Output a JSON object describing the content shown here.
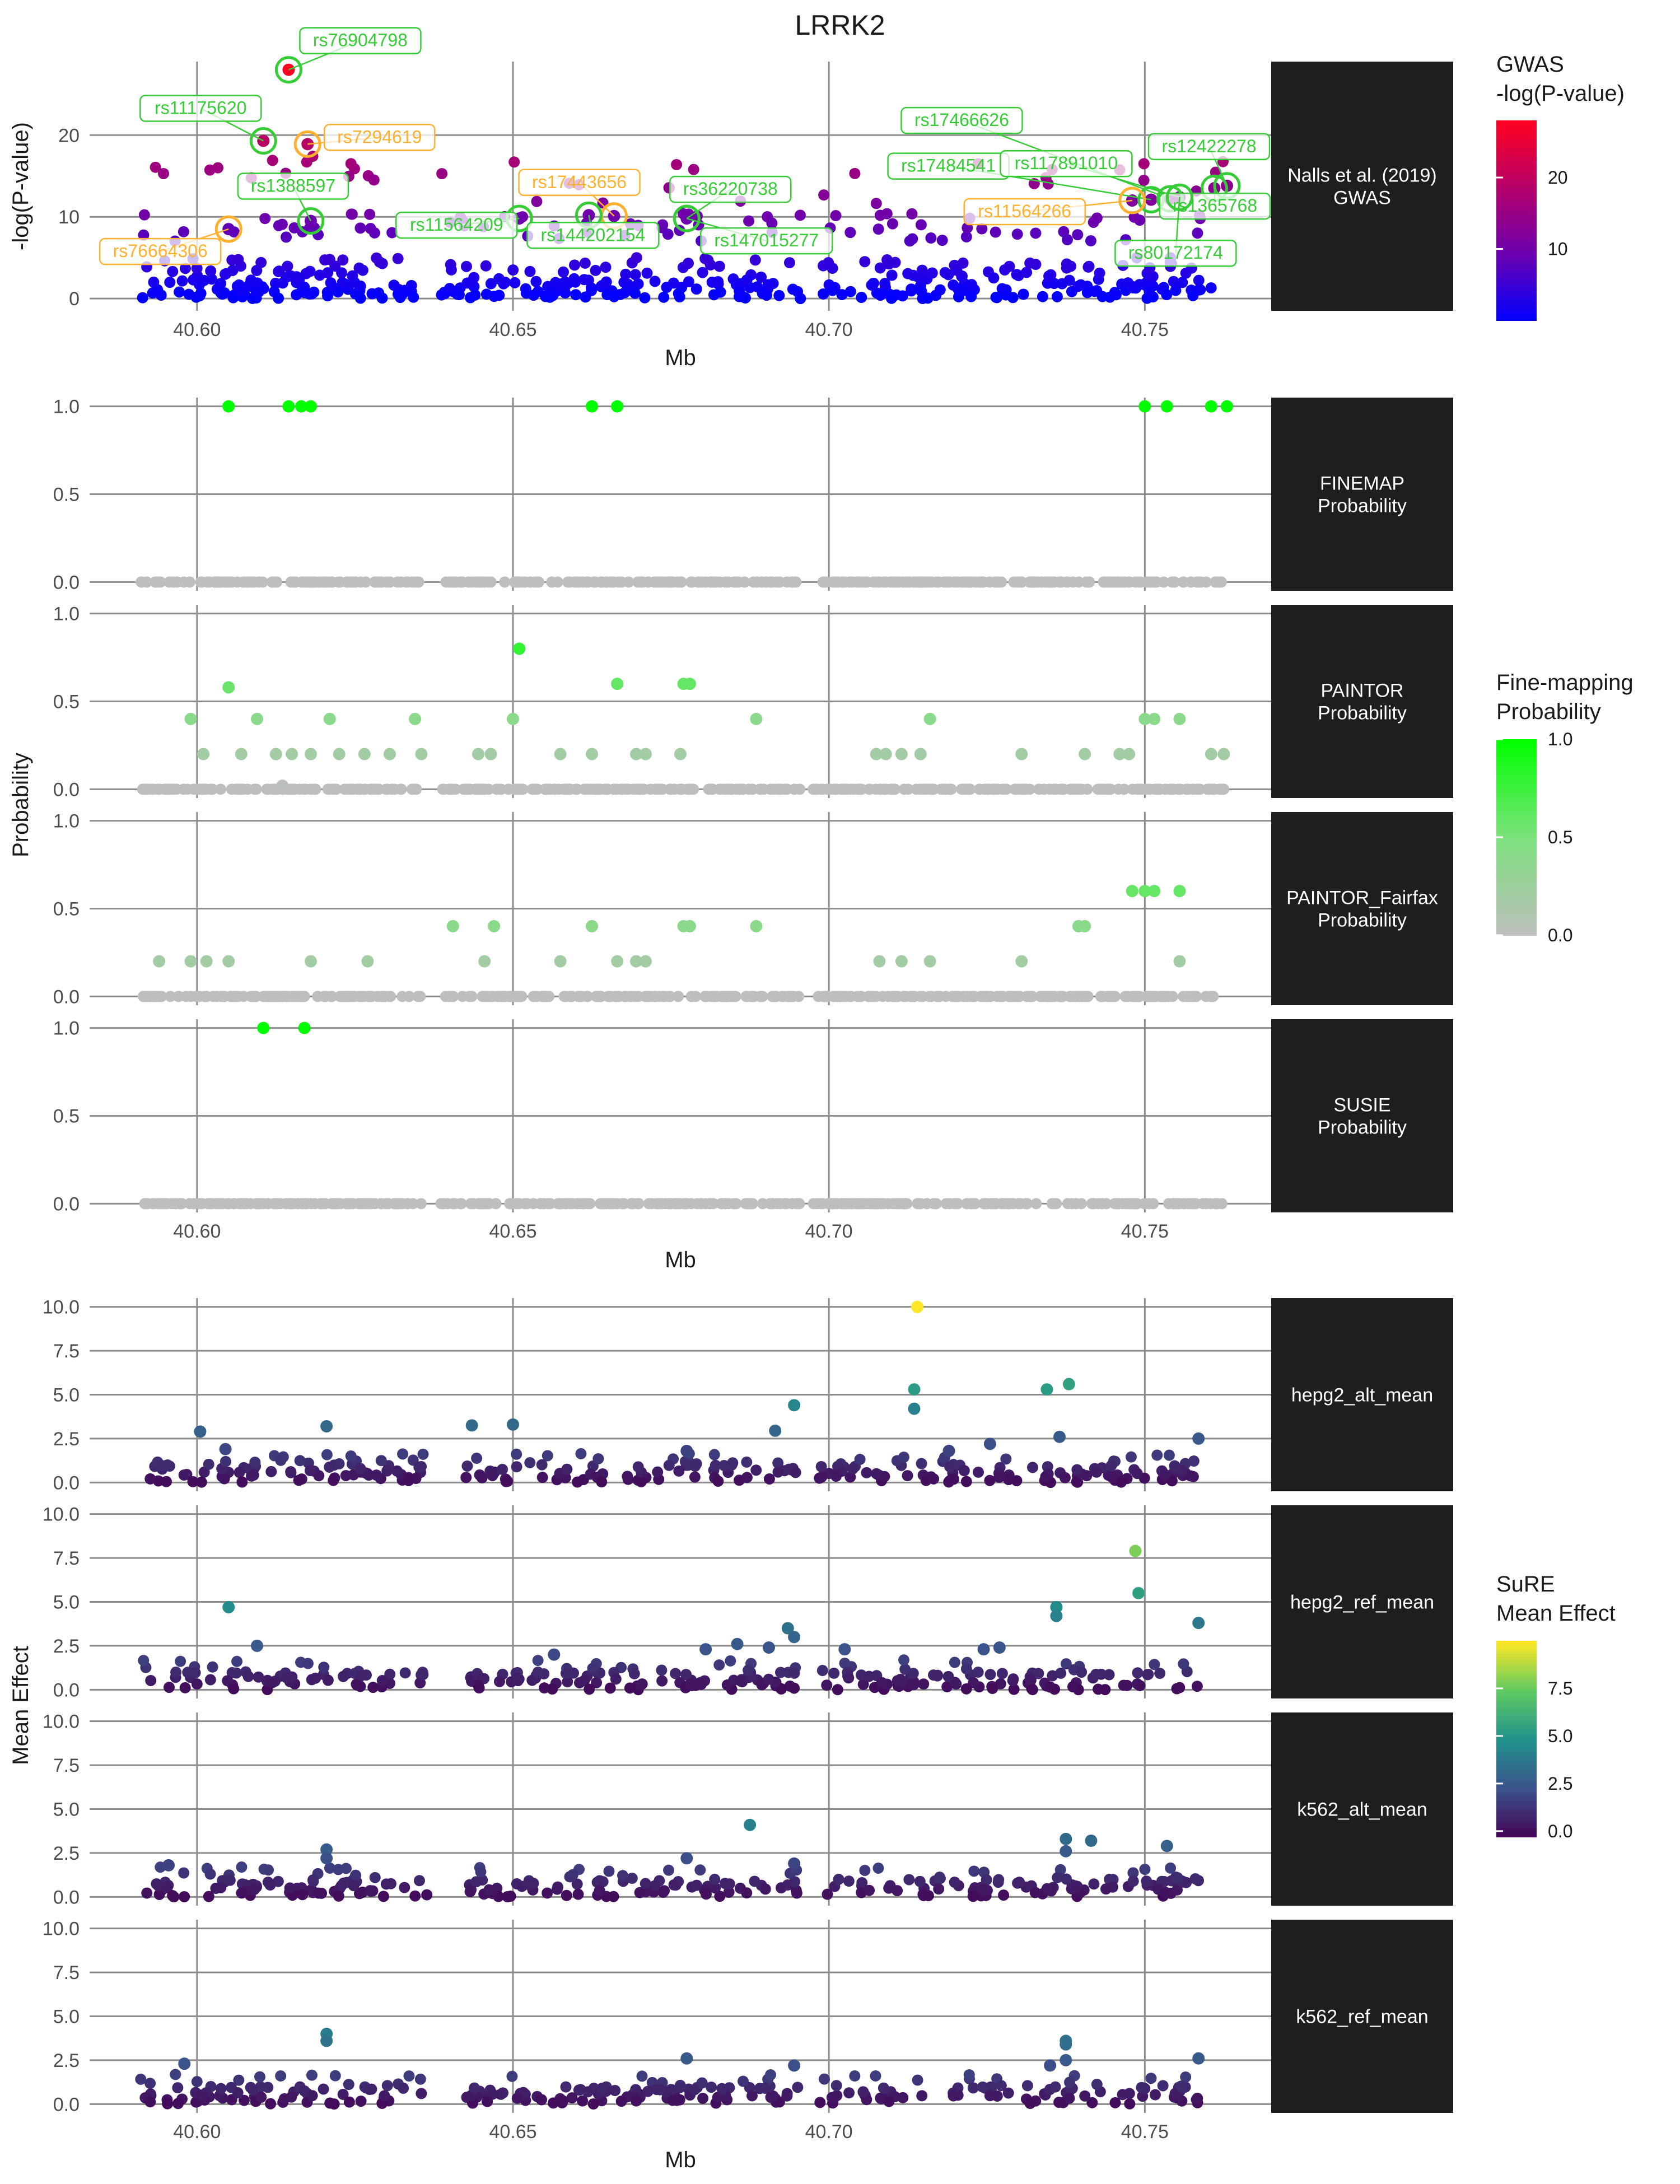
{
  "title": "LRRK2",
  "chart_data": [
    {
      "id": "gwas",
      "type": "scatter",
      "xlabel": "Mb",
      "ylabel": "-log(P-value)",
      "xlim": [
        40.583,
        40.77
      ],
      "xticks": [
        "40.60",
        "40.65",
        "40.70",
        "40.75"
      ],
      "xtick_values": [
        40.6,
        40.65,
        40.7,
        40.75
      ],
      "ylim": [
        -1.5,
        29
      ],
      "yticks": [
        "0",
        "10",
        "20"
      ],
      "ytick_values": [
        0,
        10,
        20
      ],
      "grid": true,
      "strip": [
        "Nalls et al. (2019)",
        "GWAS"
      ],
      "color_scale": {
        "title": [
          "GWAS",
          "-log(P-value)"
        ],
        "stops": [
          "#0000ff",
          "#6a00b0",
          "#b4006a",
          "#ff0022"
        ],
        "ticks": [
          "10",
          "20"
        ],
        "tick_values": [
          10,
          20
        ],
        "range": [
          0,
          28
        ]
      },
      "highlight_points": [
        {
          "x": 40.6145,
          "y": 28.0
        },
        {
          "x": 40.6105,
          "y": 19.3
        },
        {
          "x": 40.6175,
          "y": 18.9
        },
        {
          "x": 40.618,
          "y": 9.5
        },
        {
          "x": 40.605,
          "y": 8.5
        },
        {
          "x": 40.651,
          "y": 9.8
        },
        {
          "x": 40.662,
          "y": 10.2
        },
        {
          "x": 40.666,
          "y": 10.1
        },
        {
          "x": 40.6775,
          "y": 9.8
        },
        {
          "x": 40.748,
          "y": 12.0
        },
        {
          "x": 40.751,
          "y": 12.1
        },
        {
          "x": 40.754,
          "y": 12.2
        },
        {
          "x": 40.7555,
          "y": 12.4
        },
        {
          "x": 40.761,
          "y": 13.5
        },
        {
          "x": 40.763,
          "y": 13.8
        }
      ],
      "annotations": [
        {
          "text": "rs76904798",
          "x": 40.6145,
          "y": 28.0,
          "status": "green"
        },
        {
          "text": "rs11175620",
          "x": 40.6105,
          "y": 19.3,
          "status": "green"
        },
        {
          "text": "rs7294619",
          "x": 40.6175,
          "y": 18.9,
          "status": "orange"
        },
        {
          "text": "rs1388597",
          "x": 40.618,
          "y": 9.5,
          "status": "green"
        },
        {
          "text": "rs76664306",
          "x": 40.605,
          "y": 8.5,
          "status": "orange"
        },
        {
          "text": "rs11564209",
          "x": 40.651,
          "y": 9.8,
          "status": "green"
        },
        {
          "text": "rs17443656",
          "x": 40.666,
          "y": 10.1,
          "status": "orange"
        },
        {
          "text": "rs144202154",
          "x": 40.662,
          "y": 10.2,
          "status": "green"
        },
        {
          "text": "rs36220738",
          "x": 40.6775,
          "y": 9.8,
          "status": "green"
        },
        {
          "text": "rs147015277",
          "x": 40.6775,
          "y": 9.8,
          "status": "green"
        },
        {
          "text": "rs17466626",
          "x": 40.754,
          "y": 12.2,
          "status": "green"
        },
        {
          "text": "rs17484541",
          "x": 40.751,
          "y": 12.1,
          "status": "green"
        },
        {
          "text": "rs117891010",
          "x": 40.7555,
          "y": 12.4,
          "status": "green"
        },
        {
          "text": "rs11564266",
          "x": 40.748,
          "y": 12.0,
          "status": "orange"
        },
        {
          "text": "rs12422278",
          "x": 40.763,
          "y": 13.8,
          "status": "green"
        },
        {
          "text": "rs1365768",
          "x": 40.761,
          "y": 13.5,
          "status": "green"
        },
        {
          "text": "rs80172174",
          "x": 40.7555,
          "y": 12.4,
          "status": "green"
        }
      ]
    },
    {
      "id": "finemap",
      "type": "scatter",
      "ylabel": "Probability",
      "xlabel": "Mb",
      "xlim": [
        40.583,
        40.77
      ],
      "xticks": [
        "40.60",
        "40.65",
        "40.70",
        "40.75"
      ],
      "xtick_values": [
        40.6,
        40.65,
        40.7,
        40.75
      ],
      "yticks": [
        "0.0",
        "0.5",
        "1.0"
      ],
      "ytick_values": [
        0,
        0.5,
        1
      ],
      "ylim": [
        -0.05,
        1.05
      ],
      "color_scale": {
        "title": [
          "Fine-mapping",
          "Probability"
        ],
        "stops": [
          "#bebebe",
          "#7ee07e",
          "#00ff00"
        ],
        "ticks": [
          "0.0",
          "0.5",
          "1.0"
        ],
        "tick_values": [
          0,
          0.5,
          1
        ],
        "range": [
          0,
          1
        ]
      },
      "panels": [
        {
          "strip": [
            "FINEMAP",
            "Probability"
          ],
          "points": [
            {
              "x": 40.605,
              "y": 1.0
            },
            {
              "x": 40.6145,
              "y": 1.0
            },
            {
              "x": 40.6165,
              "y": 1.0
            },
            {
              "x": 40.618,
              "y": 1.0
            },
            {
              "x": 40.6625,
              "y": 1.0
            },
            {
              "x": 40.6665,
              "y": 1.0
            },
            {
              "x": 40.75,
              "y": 1.0
            },
            {
              "x": 40.7535,
              "y": 1.0
            },
            {
              "x": 40.7605,
              "y": 1.0
            },
            {
              "x": 40.763,
              "y": 1.0
            }
          ]
        },
        {
          "strip": [
            "PAINTOR",
            "Probability"
          ],
          "points": [
            {
              "x": 40.599,
              "y": 0.4
            },
            {
              "x": 40.601,
              "y": 0.2
            },
            {
              "x": 40.605,
              "y": 0.58
            },
            {
              "x": 40.607,
              "y": 0.2
            },
            {
              "x": 40.6095,
              "y": 0.4
            },
            {
              "x": 40.6125,
              "y": 0.2
            },
            {
              "x": 40.615,
              "y": 0.2
            },
            {
              "x": 40.618,
              "y": 0.2
            },
            {
              "x": 40.621,
              "y": 0.4
            },
            {
              "x": 40.6225,
              "y": 0.2
            },
            {
              "x": 40.6265,
              "y": 0.2
            },
            {
              "x": 40.6305,
              "y": 0.2
            },
            {
              "x": 40.6345,
              "y": 0.4
            },
            {
              "x": 40.6355,
              "y": 0.2
            },
            {
              "x": 40.6445,
              "y": 0.2
            },
            {
              "x": 40.6465,
              "y": 0.2
            },
            {
              "x": 40.65,
              "y": 0.4
            },
            {
              "x": 40.651,
              "y": 0.8
            },
            {
              "x": 40.6575,
              "y": 0.2
            },
            {
              "x": 40.6625,
              "y": 0.2
            },
            {
              "x": 40.6665,
              "y": 0.6
            },
            {
              "x": 40.6695,
              "y": 0.2
            },
            {
              "x": 40.671,
              "y": 0.2
            },
            {
              "x": 40.6765,
              "y": 0.2
            },
            {
              "x": 40.677,
              "y": 0.6
            },
            {
              "x": 40.678,
              "y": 0.6
            },
            {
              "x": 40.6885,
              "y": 0.4
            },
            {
              "x": 40.7075,
              "y": 0.2
            },
            {
              "x": 40.709,
              "y": 0.2
            },
            {
              "x": 40.7115,
              "y": 0.2
            },
            {
              "x": 40.7145,
              "y": 0.2
            },
            {
              "x": 40.716,
              "y": 0.4
            },
            {
              "x": 40.7305,
              "y": 0.2
            },
            {
              "x": 40.7405,
              "y": 0.2
            },
            {
              "x": 40.746,
              "y": 0.2
            },
            {
              "x": 40.7475,
              "y": 0.2
            },
            {
              "x": 40.75,
              "y": 0.4
            },
            {
              "x": 40.7515,
              "y": 0.4
            },
            {
              "x": 40.7555,
              "y": 0.4
            },
            {
              "x": 40.7605,
              "y": 0.2
            },
            {
              "x": 40.7625,
              "y": 0.2
            },
            {
              "x": 40.6135,
              "y": 0.02
            }
          ]
        },
        {
          "strip": [
            "PAINTOR_Fairfax",
            "Probability"
          ],
          "points": [
            {
              "x": 40.594,
              "y": 0.2
            },
            {
              "x": 40.599,
              "y": 0.2
            },
            {
              "x": 40.6015,
              "y": 0.2
            },
            {
              "x": 40.605,
              "y": 0.2
            },
            {
              "x": 40.618,
              "y": 0.2
            },
            {
              "x": 40.627,
              "y": 0.2
            },
            {
              "x": 40.6405,
              "y": 0.4
            },
            {
              "x": 40.6455,
              "y": 0.2
            },
            {
              "x": 40.647,
              "y": 0.4
            },
            {
              "x": 40.6575,
              "y": 0.2
            },
            {
              "x": 40.6625,
              "y": 0.4
            },
            {
              "x": 40.6665,
              "y": 0.2
            },
            {
              "x": 40.6695,
              "y": 0.2
            },
            {
              "x": 40.671,
              "y": 0.2
            },
            {
              "x": 40.677,
              "y": 0.4
            },
            {
              "x": 40.678,
              "y": 0.4
            },
            {
              "x": 40.6885,
              "y": 0.4
            },
            {
              "x": 40.708,
              "y": 0.2
            },
            {
              "x": 40.7115,
              "y": 0.2
            },
            {
              "x": 40.716,
              "y": 0.2
            },
            {
              "x": 40.7305,
              "y": 0.2
            },
            {
              "x": 40.7395,
              "y": 0.4
            },
            {
              "x": 40.7405,
              "y": 0.4
            },
            {
              "x": 40.748,
              "y": 0.6
            },
            {
              "x": 40.75,
              "y": 0.6
            },
            {
              "x": 40.7515,
              "y": 0.6
            },
            {
              "x": 40.7555,
              "y": 0.6
            },
            {
              "x": 40.7555,
              "y": 0.2
            }
          ]
        },
        {
          "strip": [
            "SUSIE",
            "Probability"
          ],
          "points": [
            {
              "x": 40.6105,
              "y": 1.0
            },
            {
              "x": 40.617,
              "y": 1.0
            }
          ]
        }
      ]
    },
    {
      "id": "sure",
      "type": "scatter",
      "ylabel": "Mean Effect",
      "xlabel": "Mb",
      "xlim": [
        40.583,
        40.77
      ],
      "xticks": [
        "40.60",
        "40.65",
        "40.70",
        "40.75"
      ],
      "xtick_values": [
        40.6,
        40.65,
        40.7,
        40.75
      ],
      "yticks": [
        "0.0",
        "2.5",
        "5.0",
        "7.5",
        "10.0"
      ],
      "ytick_values": [
        0,
        2.5,
        5,
        7.5,
        10
      ],
      "ylim": [
        -0.5,
        10.5
      ],
      "color_scale": {
        "title": [
          "SuRE",
          "Mean Effect"
        ],
        "stops": [
          "#440154",
          "#3b528b",
          "#21918c",
          "#5ec962",
          "#fde725"
        ],
        "ticks": [
          "0.0",
          "2.5",
          "5.0",
          "7.5"
        ],
        "tick_values": [
          0,
          2.5,
          5,
          7.5
        ],
        "range": [
          -0.3,
          10
        ]
      },
      "panels": [
        {
          "strip": [
            "hepg2_alt_mean"
          ],
          "points": [
            {
              "x": 40.6005,
              "y": 2.9
            },
            {
              "x": 40.6045,
              "y": 1.9
            },
            {
              "x": 40.6205,
              "y": 3.2
            },
            {
              "x": 40.6435,
              "y": 3.25
            },
            {
              "x": 40.65,
              "y": 3.3
            },
            {
              "x": 40.6775,
              "y": 1.8
            },
            {
              "x": 40.6915,
              "y": 2.95
            },
            {
              "x": 40.6945,
              "y": 4.4
            },
            {
              "x": 40.7135,
              "y": 5.3
            },
            {
              "x": 40.7135,
              "y": 4.2
            },
            {
              "x": 40.714,
              "y": 10.0
            },
            {
              "x": 40.719,
              "y": 1.8
            },
            {
              "x": 40.7255,
              "y": 2.2
            },
            {
              "x": 40.7345,
              "y": 5.3
            },
            {
              "x": 40.7365,
              "y": 2.6
            },
            {
              "x": 40.738,
              "y": 5.6
            },
            {
              "x": 40.7585,
              "y": 2.5
            }
          ]
        },
        {
          "strip": [
            "hepg2_ref_mean"
          ],
          "points": [
            {
              "x": 40.605,
              "y": 4.7
            },
            {
              "x": 40.6095,
              "y": 2.5
            },
            {
              "x": 40.6565,
              "y": 2.0
            },
            {
              "x": 40.6805,
              "y": 2.3
            },
            {
              "x": 40.6855,
              "y": 2.6
            },
            {
              "x": 40.6905,
              "y": 2.4
            },
            {
              "x": 40.6935,
              "y": 3.5
            },
            {
              "x": 40.6945,
              "y": 3.0
            },
            {
              "x": 40.7025,
              "y": 2.3
            },
            {
              "x": 40.7245,
              "y": 2.3
            },
            {
              "x": 40.727,
              "y": 2.4
            },
            {
              "x": 40.736,
              "y": 4.7
            },
            {
              "x": 40.736,
              "y": 4.2
            },
            {
              "x": 40.7485,
              "y": 7.9
            },
            {
              "x": 40.749,
              "y": 5.5
            },
            {
              "x": 40.7585,
              "y": 3.8
            }
          ]
        },
        {
          "strip": [
            "k562_alt_mean"
          ],
          "points": [
            {
              "x": 40.5955,
              "y": 1.8
            },
            {
              "x": 40.6205,
              "y": 2.7
            },
            {
              "x": 40.6205,
              "y": 2.2
            },
            {
              "x": 40.6775,
              "y": 2.2
            },
            {
              "x": 40.6875,
              "y": 4.1
            },
            {
              "x": 40.6945,
              "y": 1.9
            },
            {
              "x": 40.7375,
              "y": 3.3
            },
            {
              "x": 40.7375,
              "y": 2.6
            },
            {
              "x": 40.7415,
              "y": 3.2
            },
            {
              "x": 40.7535,
              "y": 2.9
            }
          ]
        },
        {
          "strip": [
            "k562_ref_mean"
          ],
          "points": [
            {
              "x": 40.598,
              "y": 2.3
            },
            {
              "x": 40.6205,
              "y": 4.0
            },
            {
              "x": 40.6205,
              "y": 3.6
            },
            {
              "x": 40.6775,
              "y": 2.6
            },
            {
              "x": 40.6945,
              "y": 2.2
            },
            {
              "x": 40.735,
              "y": 2.2
            },
            {
              "x": 40.7375,
              "y": 3.6
            },
            {
              "x": 40.7375,
              "y": 3.4
            },
            {
              "x": 40.7375,
              "y": 2.5
            },
            {
              "x": 40.7585,
              "y": 2.6
            }
          ]
        }
      ]
    }
  ]
}
